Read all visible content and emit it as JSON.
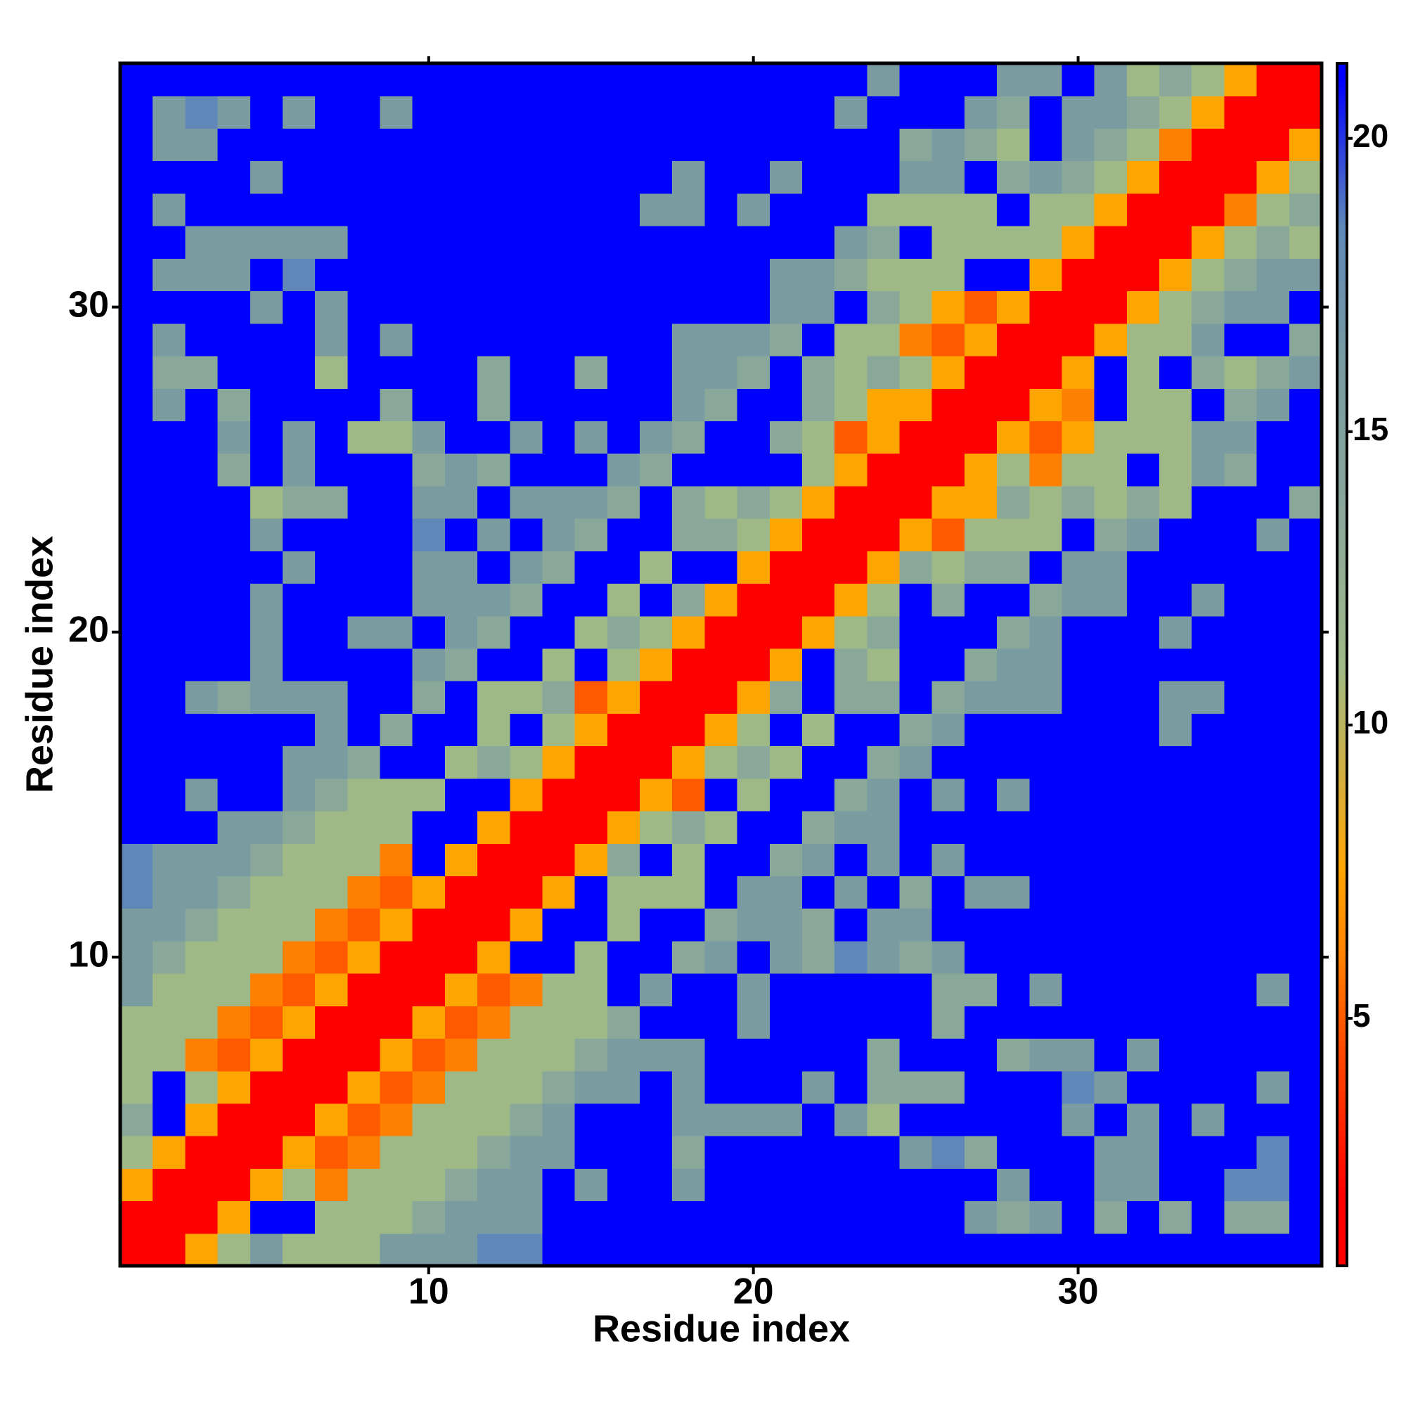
{
  "chart_data": {
    "type": "heatmap",
    "x_label": "Residue index",
    "y_label": "Residue index",
    "x": [
      1,
      2,
      3,
      4,
      5,
      6,
      7,
      8,
      9,
      10,
      11,
      12,
      13,
      14,
      15,
      16,
      17,
      18,
      19,
      20,
      21,
      22,
      23,
      24,
      25,
      26,
      27,
      28,
      29,
      30,
      31,
      32,
      33,
      34,
      35,
      36,
      37
    ],
    "y": [
      1,
      2,
      3,
      4,
      5,
      6,
      7,
      8,
      9,
      10,
      11,
      12,
      13,
      14,
      15,
      16,
      17,
      18,
      19,
      20,
      21,
      22,
      23,
      24,
      25,
      26,
      27,
      28,
      29,
      30,
      31,
      32,
      33,
      34,
      35,
      36,
      37
    ],
    "xlim": [
      0.5,
      37.5
    ],
    "ylim": [
      0.5,
      37.5
    ],
    "xticks": [
      10,
      20,
      30
    ],
    "yticks": [
      10,
      20,
      30
    ],
    "zlim": [
      0.78,
      21.28
    ],
    "zticks": [
      5,
      10,
      15,
      20
    ],
    "colorscale": [
      [
        2,
        "#ff0000"
      ],
      [
        5,
        "#ff5a00"
      ],
      [
        6,
        "#ff8000"
      ],
      [
        7.5,
        "#ffa500"
      ],
      [
        11,
        "#9fb986"
      ],
      [
        13.5,
        "#8aa89a"
      ],
      [
        16,
        "#7a9ca0"
      ],
      [
        18.5,
        "#5f88b8"
      ],
      [
        21,
        "#0000ff"
      ]
    ],
    "z": [
      [
        2,
        2,
        7.5,
        11,
        16,
        11,
        11,
        11,
        16,
        16,
        16,
        18.5,
        18.5,
        21,
        21,
        21,
        21,
        21,
        21,
        21,
        21,
        21,
        21,
        21,
        21,
        21,
        21,
        21,
        21,
        21,
        21,
        21,
        21,
        21,
        21,
        21,
        21
      ],
      [
        2,
        2,
        2,
        7.5,
        21,
        21,
        11,
        11,
        11,
        13.5,
        16,
        16,
        16,
        21,
        21,
        21,
        21,
        21,
        21,
        21,
        21,
        21,
        21,
        21,
        21,
        21,
        16,
        13.5,
        16,
        21,
        13.5,
        21,
        13.5,
        21,
        13.5,
        13.5,
        21
      ],
      [
        7.5,
        2,
        2,
        2,
        7.5,
        11,
        6,
        11,
        11,
        11,
        13.5,
        16,
        16,
        21,
        16,
        21,
        21,
        16,
        21,
        21,
        21,
        21,
        21,
        21,
        21,
        21,
        21,
        16,
        21,
        21,
        16,
        16,
        21,
        21,
        18.5,
        18.5,
        21
      ],
      [
        11,
        7.5,
        2,
        2,
        2,
        7.5,
        5,
        6,
        11,
        11,
        11,
        13.5,
        16,
        16,
        21,
        21,
        21,
        13.5,
        21,
        21,
        21,
        21,
        21,
        21,
        16,
        18.5,
        13.5,
        21,
        21,
        21,
        16,
        16,
        21,
        21,
        21,
        18.5,
        21
      ],
      [
        13.5,
        21,
        7.5,
        2,
        2,
        2,
        7.5,
        5,
        6,
        11,
        11,
        11,
        13.5,
        16,
        21,
        21,
        21,
        16,
        16,
        16,
        16,
        21,
        16,
        11,
        21,
        21,
        21,
        21,
        21,
        16,
        21,
        16,
        21,
        16,
        21,
        21,
        21
      ],
      [
        11,
        21,
        11,
        7.5,
        2,
        2,
        2,
        7.5,
        5,
        6,
        11,
        11,
        11,
        13.5,
        16,
        16,
        21,
        16,
        21,
        21,
        21,
        16,
        21,
        13.5,
        13.5,
        13.5,
        21,
        21,
        21,
        18.5,
        16,
        21,
        21,
        21,
        21,
        16,
        21
      ],
      [
        11,
        11,
        6,
        5,
        7.5,
        2,
        2,
        2,
        7.5,
        5,
        6,
        11,
        11,
        11,
        13.5,
        16,
        16,
        16,
        21,
        21,
        21,
        21,
        21,
        13.5,
        21,
        21,
        21,
        13.5,
        16,
        16,
        21,
        16,
        21,
        21,
        21,
        21,
        21
      ],
      [
        11,
        11,
        11,
        6,
        5,
        7.5,
        2,
        2,
        2,
        7.5,
        5,
        6,
        11,
        11,
        11,
        13.5,
        21,
        21,
        21,
        16,
        21,
        21,
        21,
        21,
        21,
        13.5,
        21,
        21,
        21,
        21,
        21,
        21,
        21,
        21,
        21,
        21,
        21
      ],
      [
        16,
        11,
        11,
        11,
        6,
        5,
        7.5,
        2,
        2,
        2,
        7.5,
        5,
        6,
        11,
        11,
        21,
        16,
        21,
        21,
        16,
        21,
        21,
        21,
        21,
        21,
        13.5,
        13.5,
        21,
        16,
        21,
        21,
        21,
        21,
        21,
        21,
        16,
        21
      ],
      [
        16,
        13.5,
        11,
        11,
        11,
        6,
        5,
        7.5,
        2,
        2,
        2,
        7.5,
        21,
        21,
        11,
        21,
        21,
        13.5,
        16,
        21,
        16,
        13.5,
        18.5,
        16,
        13.5,
        16,
        21,
        21,
        21,
        21,
        21,
        21,
        21,
        21,
        21,
        21,
        21
      ],
      [
        16,
        16,
        13.5,
        11,
        11,
        11,
        6,
        5,
        7.5,
        2,
        2,
        2,
        7.5,
        21,
        21,
        11,
        21,
        21,
        13.5,
        16,
        16,
        13.5,
        21,
        16,
        16,
        21,
        21,
        21,
        21,
        21,
        21,
        21,
        21,
        21,
        21,
        21,
        21
      ],
      [
        18.5,
        16,
        16,
        13.5,
        11,
        11,
        11,
        6,
        5,
        7.5,
        2,
        2,
        2,
        7.5,
        21,
        11,
        11,
        11,
        21,
        16,
        16,
        21,
        16,
        21,
        13.5,
        21,
        16,
        16,
        21,
        21,
        21,
        21,
        21,
        21,
        21,
        21,
        21
      ],
      [
        18.5,
        16,
        16,
        16,
        13.5,
        11,
        11,
        11,
        6,
        21,
        7.5,
        2,
        2,
        2,
        7.5,
        13.5,
        21,
        11,
        21,
        21,
        13.5,
        16,
        21,
        16,
        21,
        16,
        21,
        21,
        21,
        21,
        21,
        21,
        21,
        21,
        21,
        21,
        21
      ],
      [
        21,
        21,
        21,
        16,
        16,
        13.5,
        11,
        11,
        11,
        21,
        21,
        7.5,
        2,
        2,
        2,
        7.5,
        11,
        13.5,
        11,
        21,
        21,
        13.5,
        16,
        16,
        21,
        21,
        21,
        21,
        21,
        21,
        21,
        21,
        21,
        21,
        21,
        21,
        21
      ],
      [
        21,
        21,
        16,
        21,
        21,
        16,
        13.5,
        11,
        11,
        11,
        21,
        21,
        7.5,
        2,
        2,
        2,
        7.5,
        5,
        21,
        11,
        21,
        21,
        13.5,
        16,
        21,
        16,
        21,
        16,
        21,
        21,
        21,
        21,
        21,
        21,
        21,
        21,
        21
      ],
      [
        21,
        21,
        21,
        21,
        21,
        16,
        16,
        13.5,
        21,
        21,
        11,
        13.5,
        11,
        7.5,
        2,
        2,
        2,
        7.5,
        11,
        13.5,
        11,
        21,
        21,
        13.5,
        16,
        21,
        21,
        21,
        21,
        21,
        21,
        21,
        21,
        21,
        21,
        21,
        21
      ],
      [
        21,
        21,
        21,
        21,
        21,
        21,
        16,
        21,
        13.5,
        21,
        21,
        11,
        21,
        11,
        7.5,
        2,
        2,
        2,
        7.5,
        11,
        21,
        11,
        21,
        21,
        13.5,
        16,
        21,
        21,
        21,
        21,
        21,
        21,
        16,
        21,
        21,
        21,
        21
      ],
      [
        21,
        21,
        16,
        13.5,
        16,
        16,
        16,
        21,
        21,
        13.5,
        21,
        11,
        11,
        13.5,
        5,
        7.5,
        2,
        2,
        2,
        7.5,
        13.5,
        21,
        13.5,
        13.5,
        21,
        13.5,
        16,
        16,
        16,
        21,
        21,
        21,
        16,
        16,
        21,
        21,
        21
      ],
      [
        21,
        21,
        21,
        21,
        16,
        21,
        21,
        21,
        21,
        16,
        13.5,
        21,
        21,
        11,
        21,
        11,
        7.5,
        2,
        2,
        2,
        7.5,
        21,
        13.5,
        11,
        21,
        21,
        13.5,
        16,
        16,
        21,
        21,
        21,
        21,
        21,
        21,
        21,
        21
      ],
      [
        21,
        21,
        21,
        21,
        16,
        21,
        21,
        16,
        16,
        21,
        16,
        13.5,
        21,
        21,
        11,
        13.5,
        11,
        7.5,
        2,
        2,
        2,
        7.5,
        11,
        13.5,
        21,
        21,
        21,
        13.5,
        16,
        21,
        21,
        21,
        16,
        21,
        21,
        21,
        21
      ],
      [
        21,
        21,
        21,
        21,
        16,
        21,
        21,
        21,
        21,
        16,
        16,
        16,
        13.5,
        21,
        21,
        11,
        21,
        13.5,
        7.5,
        2,
        2,
        2,
        7.5,
        11,
        21,
        13.5,
        21,
        21,
        13.5,
        16,
        16,
        21,
        21,
        16,
        21,
        21,
        21
      ],
      [
        21,
        21,
        21,
        21,
        21,
        16,
        21,
        21,
        21,
        16,
        16,
        21,
        16,
        13.5,
        21,
        21,
        11,
        21,
        21,
        7.5,
        2,
        2,
        2,
        7.5,
        13.5,
        11,
        13.5,
        13.5,
        21,
        16,
        16,
        21,
        21,
        21,
        21,
        21,
        21
      ],
      [
        21,
        21,
        21,
        21,
        16,
        21,
        21,
        21,
        21,
        18.5,
        21,
        16,
        21,
        16,
        13.5,
        21,
        21,
        13.5,
        13.5,
        11,
        7.5,
        2,
        2,
        2,
        7.5,
        5,
        11,
        11,
        11,
        21,
        13.5,
        16,
        21,
        21,
        21,
        16,
        21
      ],
      [
        21,
        21,
        21,
        21,
        11,
        13.5,
        13.5,
        21,
        21,
        16,
        16,
        21,
        16,
        16,
        16,
        13.5,
        21,
        13.5,
        11,
        13.5,
        11,
        7.5,
        2,
        2,
        2,
        7.5,
        7.5,
        13.5,
        11,
        13.5,
        11,
        13.5,
        11,
        21,
        21,
        21,
        13.5
      ],
      [
        21,
        21,
        21,
        13.5,
        21,
        16,
        21,
        21,
        21,
        13.5,
        16,
        13.5,
        21,
        21,
        21,
        16,
        13.5,
        21,
        21,
        21,
        21,
        11,
        7.5,
        2,
        2,
        2,
        7.5,
        11,
        6,
        11,
        11,
        21,
        11,
        16,
        13.5,
        21,
        21
      ],
      [
        21,
        21,
        21,
        16,
        21,
        16,
        21,
        11,
        11,
        16,
        21,
        21,
        16,
        21,
        16,
        21,
        16,
        13.5,
        21,
        21,
        13.5,
        11,
        5,
        7.5,
        2,
        2,
        2,
        7.5,
        5,
        7.5,
        11,
        11,
        11,
        16,
        16,
        21,
        21
      ],
      [
        21,
        16,
        21,
        13.5,
        21,
        21,
        21,
        21,
        13.5,
        21,
        21,
        13.5,
        21,
        21,
        21,
        21,
        21,
        16,
        13.5,
        21,
        21,
        13.5,
        11,
        7.5,
        7.5,
        2,
        2,
        2,
        7.5,
        6,
        21,
        11,
        11,
        21,
        13.5,
        16,
        21
      ],
      [
        21,
        13.5,
        13.5,
        21,
        21,
        21,
        11,
        21,
        21,
        21,
        21,
        13.5,
        21,
        21,
        13.5,
        21,
        21,
        16,
        16,
        13.5,
        21,
        13.5,
        11,
        13.5,
        11,
        7.5,
        2,
        2,
        2,
        7.5,
        21,
        11,
        21,
        13.5,
        11,
        13.5,
        16
      ],
      [
        21,
        16,
        21,
        21,
        21,
        21,
        16,
        21,
        16,
        21,
        21,
        21,
        21,
        21,
        21,
        21,
        21,
        16,
        16,
        16,
        13.5,
        21,
        11,
        11,
        6,
        5,
        7.5,
        2,
        2,
        2,
        7.5,
        11,
        11,
        16,
        21,
        21,
        13.5
      ],
      [
        21,
        21,
        21,
        21,
        16,
        21,
        16,
        21,
        21,
        21,
        21,
        21,
        21,
        21,
        21,
        21,
        21,
        21,
        21,
        21,
        16,
        16,
        21,
        13.5,
        11,
        7.5,
        5,
        7.5,
        2,
        2,
        2,
        7.5,
        11,
        13.5,
        16,
        16,
        21
      ],
      [
        21,
        16,
        16,
        16,
        21,
        18.5,
        21,
        21,
        21,
        21,
        21,
        21,
        21,
        21,
        21,
        21,
        21,
        21,
        21,
        21,
        16,
        16,
        13.5,
        11,
        11,
        11,
        21,
        21,
        7.5,
        2,
        2,
        2,
        7.5,
        11,
        13.5,
        16,
        16
      ],
      [
        21,
        21,
        16,
        16,
        16,
        16,
        16,
        21,
        21,
        21,
        21,
        21,
        21,
        21,
        21,
        21,
        21,
        21,
        21,
        21,
        21,
        21,
        16,
        13.5,
        21,
        11,
        11,
        11,
        11,
        7.5,
        2,
        2,
        2,
        7.5,
        11,
        13.5,
        11
      ],
      [
        21,
        16,
        21,
        21,
        21,
        21,
        21,
        21,
        21,
        21,
        21,
        21,
        21,
        21,
        21,
        21,
        16,
        16,
        21,
        16,
        21,
        21,
        21,
        11,
        11,
        11,
        11,
        21,
        11,
        11,
        7.5,
        2,
        2,
        2,
        6,
        11,
        13.5
      ],
      [
        21,
        21,
        21,
        21,
        16,
        21,
        21,
        21,
        21,
        21,
        21,
        21,
        21,
        21,
        21,
        21,
        21,
        16,
        21,
        21,
        16,
        21,
        21,
        21,
        16,
        16,
        21,
        13.5,
        16,
        13.5,
        11,
        7.5,
        2,
        2,
        2,
        7.5,
        11
      ],
      [
        21,
        16,
        16,
        21,
        21,
        21,
        21,
        21,
        21,
        21,
        21,
        21,
        21,
        21,
        21,
        21,
        21,
        21,
        21,
        21,
        21,
        21,
        21,
        21,
        13.5,
        16,
        13.5,
        11,
        21,
        16,
        13.5,
        11,
        6,
        2,
        2,
        2,
        7.5
      ],
      [
        21,
        16,
        18.5,
        16,
        21,
        16,
        21,
        21,
        16,
        21,
        21,
        21,
        21,
        21,
        21,
        21,
        21,
        21,
        21,
        21,
        21,
        21,
        16,
        21,
        21,
        21,
        16,
        13.5,
        21,
        16,
        16,
        13.5,
        11,
        7.5,
        2,
        2,
        2
      ],
      [
        21,
        21,
        21,
        21,
        21,
        21,
        21,
        21,
        21,
        21,
        21,
        21,
        21,
        21,
        21,
        21,
        21,
        21,
        21,
        21,
        21,
        21,
        21,
        16,
        21,
        21,
        21,
        16,
        16,
        21,
        16,
        11,
        13.5,
        11,
        7.5,
        2,
        2
      ]
    ]
  }
}
